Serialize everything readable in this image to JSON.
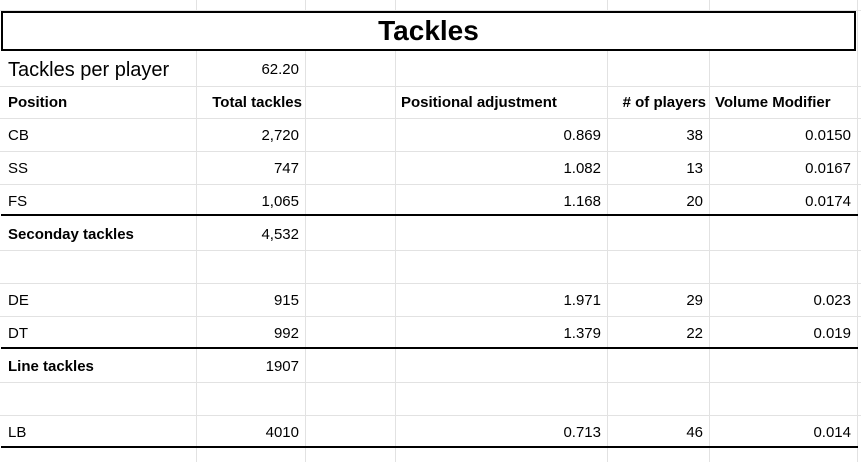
{
  "sheet": {
    "title": "Tackles",
    "tackles_per_player_label": "Tackles per player",
    "tackles_per_player_value": "62.20",
    "headers": {
      "position": "Position",
      "total_tackles": "Total tackles",
      "positional_adjustment": "Positional adjustment",
      "num_players": "# of players",
      "volume_modifier": "Volume Modifier"
    },
    "rows": [
      {
        "position": "CB",
        "total": "2,720",
        "adj": "0.869",
        "players": "38",
        "modifier": "0.0150"
      },
      {
        "position": "SS",
        "total": "747",
        "adj": "1.082",
        "players": "13",
        "modifier": "0.0167"
      },
      {
        "position": "FS",
        "total": "1,065",
        "adj": "1.168",
        "players": "20",
        "modifier": "0.0174"
      },
      {
        "position": "Seconday tackles",
        "total": "4,532",
        "adj": "",
        "players": "",
        "modifier": ""
      },
      {
        "position": "",
        "total": "",
        "adj": "",
        "players": "",
        "modifier": ""
      },
      {
        "position": "DE",
        "total": "915",
        "adj": "1.971",
        "players": "29",
        "modifier": "0.023"
      },
      {
        "position": "DT",
        "total": "992",
        "adj": "1.379",
        "players": "22",
        "modifier": "0.019"
      },
      {
        "position": "Line tackles",
        "total": "1907",
        "adj": "",
        "players": "",
        "modifier": ""
      },
      {
        "position": "",
        "total": "",
        "adj": "",
        "players": "",
        "modifier": ""
      },
      {
        "position": "LB",
        "total": "4010",
        "adj": "0.713",
        "players": "46",
        "modifier": "0.014"
      }
    ]
  }
}
